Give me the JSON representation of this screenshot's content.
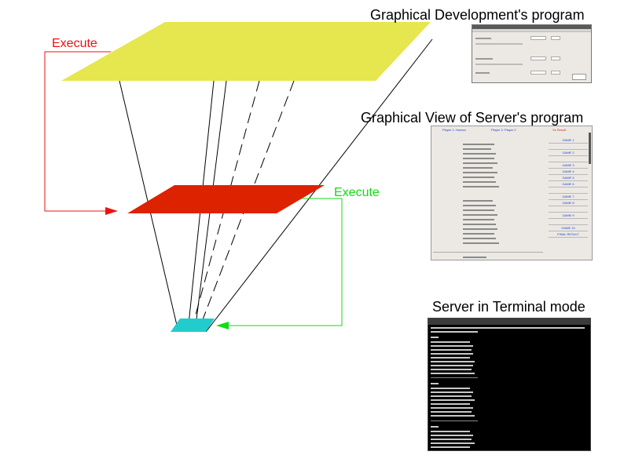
{
  "labels": {
    "graphical_dev": "Graphical Development's program",
    "graphical_view": "Graphical View of Server's program",
    "server_terminal": "Server in Terminal mode",
    "execute_red": "Execute",
    "execute_green": "Execute"
  },
  "colors": {
    "top_plane": "#e6e64e",
    "middle_plane": "#dd2200",
    "bottom_plane": "#22cccc",
    "execute_red": "#ee1111",
    "execute_green": "#11dd11",
    "lines": "#000000"
  },
  "screenshots": {
    "server_view": {
      "header_left": "Player 1: Human",
      "header_mid": "Player 2: Player 2",
      "header_right": "Vs Result",
      "cells": [
        "GAME 1",
        "GAME 2",
        "GAME 3",
        "GAME 4",
        "GAME 5",
        "GAME 6",
        "GAME 7",
        "GAME 8",
        "GAME 9",
        "GAME 10",
        "FINAL RESULT"
      ]
    }
  }
}
